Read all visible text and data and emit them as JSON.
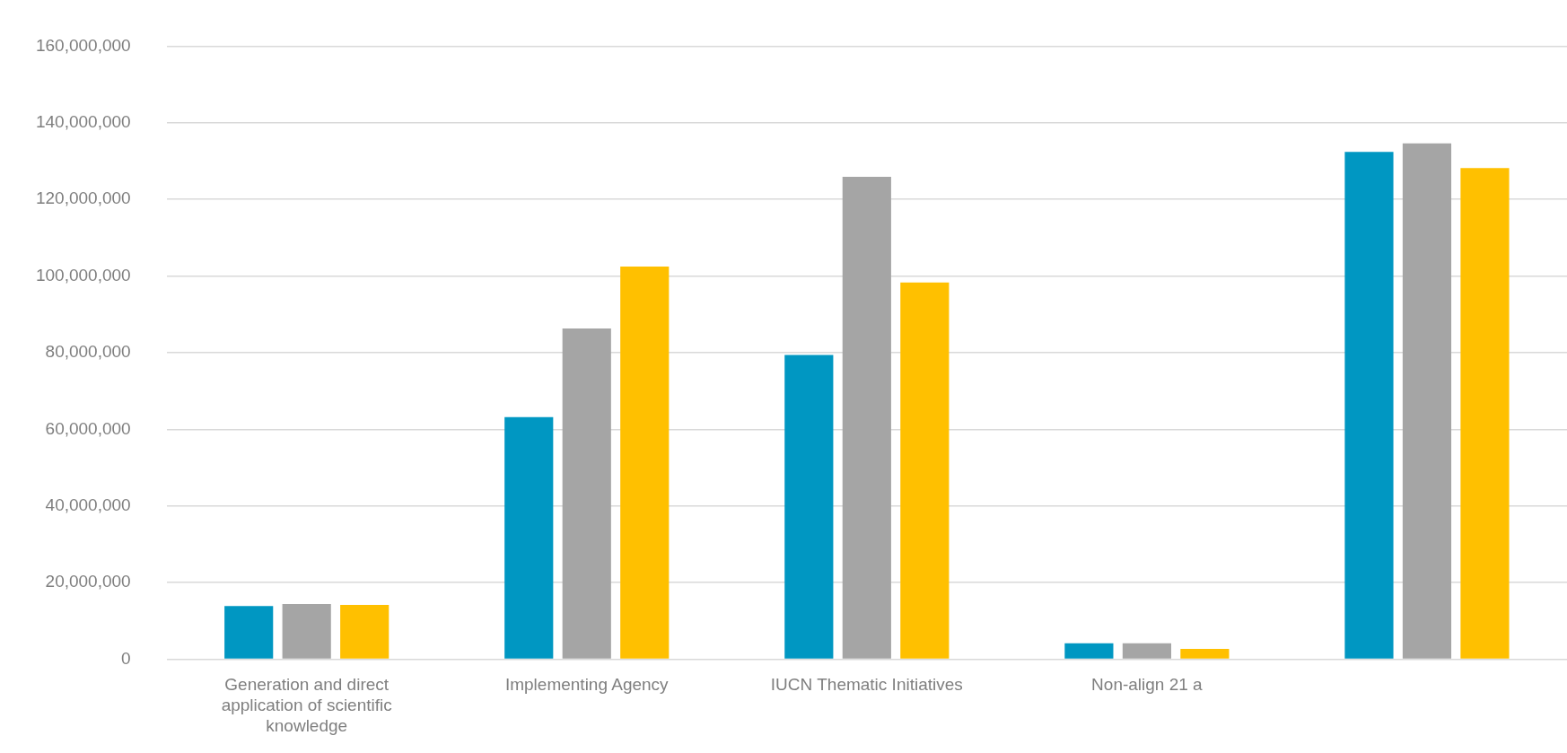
{
  "chart_data": {
    "type": "bar",
    "categories": [
      "Generation and direct application of scientific knowledge",
      "Implementing Agency",
      "IUCN Thematic Initiatives",
      "Non-align 21 a",
      null
    ],
    "series": [
      {
        "color": "#0097c2",
        "values": [
          13900000,
          63200000,
          79400000,
          4200000,
          132400000
        ]
      },
      {
        "color": "#a5a5a5",
        "values": [
          14400000,
          86300000,
          125900000,
          4200000,
          134600000
        ]
      },
      {
        "color": "#ffc000",
        "values": [
          14200000,
          102500000,
          98300000,
          2700000,
          128200000
        ]
      }
    ],
    "ylim": [
      0,
      160000000
    ],
    "yticks": [
      0,
      {
        "value": 20000000,
        "label": "20,000,000"
      },
      {
        "value": 40000000,
        "label": "40,000,000"
      },
      {
        "value": 60000000,
        "label": "60,000,000"
      },
      {
        "value": 80000000,
        "label": "80,000,000"
      },
      {
        "value": 100000000,
        "label": "100,000,000"
      },
      {
        "value": 120000000,
        "label": "120,000,000"
      },
      {
        "value": 140000000,
        "label": "140,000,000"
      },
      {
        "value": 160000000,
        "label": "160,000,000"
      }
    ],
    "grid": "y",
    "legend": false
  }
}
